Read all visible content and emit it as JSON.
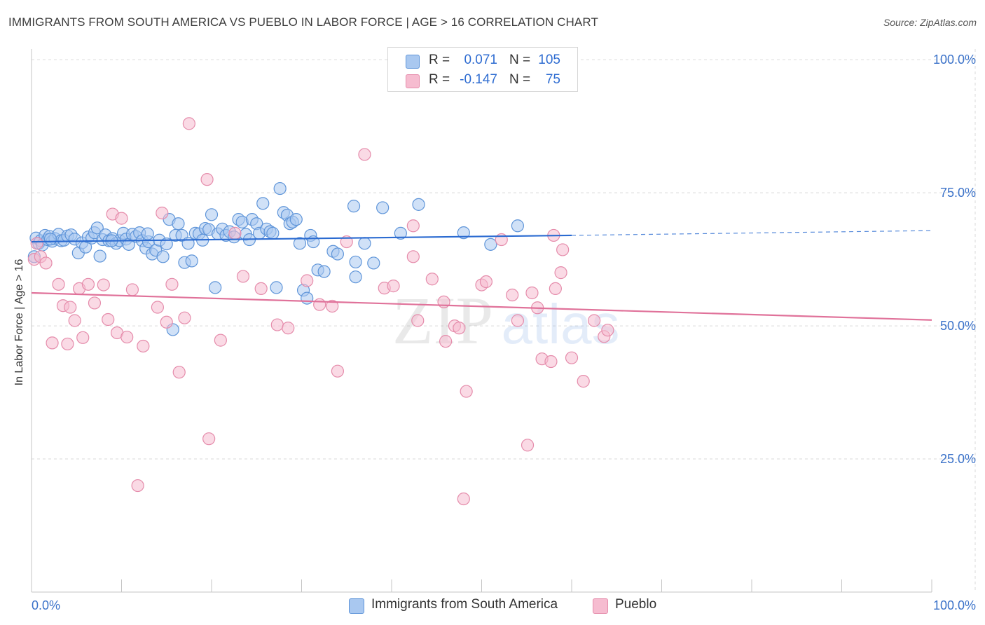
{
  "title": "IMMIGRANTS FROM SOUTH AMERICA VS PUEBLO IN LABOR FORCE | AGE > 16 CORRELATION CHART",
  "source": "Source: ZipAtlas.com",
  "colors": {
    "blue_fill": "#a9c8f0",
    "blue_stroke": "#5f95d9",
    "blue_line": "#2b6bd1",
    "pink_fill": "#f6bcd0",
    "pink_stroke": "#e58cab",
    "pink_line": "#e0729a",
    "grid": "#d9d9d9",
    "axis_text": "#3b72c9"
  },
  "legend": {
    "rows": [
      {
        "r_label": "R =",
        "r_value": "0.071",
        "n_label": "N =",
        "n_value": "105"
      },
      {
        "r_label": "R =",
        "r_value": "-0.147",
        "n_label": "N =",
        "n_value": "75"
      }
    ]
  },
  "bottom_legend": {
    "blue": "Immigrants from South America",
    "pink": "Pueblo"
  },
  "watermark": {
    "zip": "ZIP",
    "atlas": "atlas"
  },
  "chart_data": {
    "type": "scatter",
    "title": "IMMIGRANTS FROM SOUTH AMERICA VS PUEBLO IN LABOR FORCE | AGE > 16 CORRELATION CHART",
    "xlabel": "",
    "ylabel": "In Labor Force | Age > 16",
    "xlim": [
      0,
      100
    ],
    "ylim": [
      0,
      102
    ],
    "x_tick_labels": [
      "0.0%",
      "100.0%"
    ],
    "y_ticks": [
      25,
      50,
      75,
      100
    ],
    "y_tick_labels": [
      "25.0%",
      "50.0%",
      "75.0%",
      "100.0%"
    ],
    "grid": true,
    "series": [
      {
        "name": "Immigrants from South America",
        "color": "blue",
        "trend": {
          "x0": 0,
          "y0": 65.8,
          "x1": 60,
          "y1": 67.0,
          "dash_x1": 100,
          "dash_y1": 67.9
        },
        "points": [
          [
            0.3,
            63.0
          ],
          [
            0.5,
            66.5
          ],
          [
            0.8,
            65.5
          ],
          [
            1.0,
            66.0
          ],
          [
            1.2,
            65.2
          ],
          [
            1.5,
            67.0
          ],
          [
            1.8,
            66.2
          ],
          [
            2.0,
            66.8
          ],
          [
            2.3,
            65.9
          ],
          [
            2.6,
            66.4
          ],
          [
            3.0,
            67.2
          ],
          [
            3.3,
            66.0
          ],
          [
            3.6,
            66.1
          ],
          [
            4.0,
            66.9
          ],
          [
            4.4,
            67.1
          ],
          [
            4.8,
            66.3
          ],
          [
            5.2,
            63.7
          ],
          [
            5.6,
            65.6
          ],
          [
            6.0,
            64.8
          ],
          [
            6.3,
            66.7
          ],
          [
            6.7,
            66.5
          ],
          [
            7.0,
            67.5
          ],
          [
            7.3,
            68.4
          ],
          [
            7.6,
            63.1
          ],
          [
            7.9,
            66.2
          ],
          [
            8.2,
            67.1
          ],
          [
            8.6,
            66.0
          ],
          [
            9.0,
            66.4
          ],
          [
            9.4,
            65.5
          ],
          [
            9.8,
            66.0
          ],
          [
            10.2,
            67.4
          ],
          [
            10.5,
            66.3
          ],
          [
            10.8,
            65.3
          ],
          [
            11.2,
            67.2
          ],
          [
            11.6,
            66.8
          ],
          [
            12.0,
            67.5
          ],
          [
            12.3,
            66.0
          ],
          [
            12.7,
            64.6
          ],
          [
            13.0,
            65.8
          ],
          [
            13.4,
            63.5
          ],
          [
            13.8,
            64.2
          ],
          [
            14.2,
            66.1
          ],
          [
            14.6,
            63.0
          ],
          [
            15.0,
            65.4
          ],
          [
            15.3,
            70.0
          ],
          [
            15.7,
            49.3
          ],
          [
            16.0,
            67.0
          ],
          [
            16.3,
            69.2
          ],
          [
            16.7,
            67.0
          ],
          [
            17.0,
            61.9
          ],
          [
            17.4,
            65.5
          ],
          [
            17.8,
            62.2
          ],
          [
            18.2,
            67.4
          ],
          [
            18.6,
            67.3
          ],
          [
            19.0,
            66.1
          ],
          [
            19.3,
            68.3
          ],
          [
            19.7,
            68.1
          ],
          [
            20.0,
            70.9
          ],
          [
            20.4,
            57.2
          ],
          [
            20.7,
            67.3
          ],
          [
            21.2,
            68.2
          ],
          [
            21.6,
            67.0
          ],
          [
            22.0,
            67.7
          ],
          [
            22.5,
            66.7
          ],
          [
            23.0,
            70.0
          ],
          [
            23.4,
            69.5
          ],
          [
            23.8,
            67.2
          ],
          [
            24.2,
            66.2
          ],
          [
            24.5,
            70.0
          ],
          [
            25.0,
            69.2
          ],
          [
            25.3,
            67.4
          ],
          [
            25.7,
            73.0
          ],
          [
            26.1,
            68.2
          ],
          [
            26.5,
            67.7
          ],
          [
            26.8,
            67.4
          ],
          [
            27.2,
            57.2
          ],
          [
            27.6,
            75.8
          ],
          [
            28.0,
            71.3
          ],
          [
            28.4,
            70.8
          ],
          [
            28.7,
            69.2
          ],
          [
            29.0,
            69.5
          ],
          [
            29.4,
            70.0
          ],
          [
            29.8,
            65.5
          ],
          [
            30.2,
            56.7
          ],
          [
            30.6,
            55.2
          ],
          [
            31.0,
            67.0
          ],
          [
            31.3,
            65.8
          ],
          [
            31.8,
            60.5
          ],
          [
            32.5,
            60.2
          ],
          [
            33.5,
            64.0
          ],
          [
            34.0,
            63.5
          ],
          [
            35.8,
            72.5
          ],
          [
            36.0,
            59.2
          ],
          [
            36.0,
            62.0
          ],
          [
            37.0,
            65.5
          ],
          [
            38.0,
            61.8
          ],
          [
            39.0,
            72.2
          ],
          [
            41.0,
            67.4
          ],
          [
            43.0,
            72.8
          ],
          [
            48.0,
            67.5
          ],
          [
            51.0,
            65.3
          ],
          [
            54.0,
            68.8
          ],
          [
            2.1,
            66.3
          ],
          [
            8.9,
            66.0
          ],
          [
            12.9,
            67.3
          ]
        ]
      },
      {
        "name": "Pueblo",
        "color": "pink",
        "trend": {
          "x0": 0,
          "y0": 56.2,
          "x1": 100,
          "y1": 51.1
        },
        "points": [
          [
            0.3,
            62.5
          ],
          [
            0.6,
            65.5
          ],
          [
            1.0,
            63.0
          ],
          [
            1.6,
            61.8
          ],
          [
            2.3,
            46.8
          ],
          [
            3.0,
            57.8
          ],
          [
            3.5,
            53.8
          ],
          [
            4.0,
            46.6
          ],
          [
            4.3,
            53.5
          ],
          [
            4.8,
            51.0
          ],
          [
            5.3,
            57.0
          ],
          [
            5.7,
            47.8
          ],
          [
            6.3,
            57.8
          ],
          [
            7.0,
            54.3
          ],
          [
            8.0,
            57.7
          ],
          [
            8.5,
            51.2
          ],
          [
            9.0,
            71.0
          ],
          [
            9.5,
            48.7
          ],
          [
            10.0,
            70.2
          ],
          [
            10.6,
            47.9
          ],
          [
            11.2,
            56.8
          ],
          [
            11.8,
            20.0
          ],
          [
            12.4,
            46.2
          ],
          [
            14.0,
            53.5
          ],
          [
            14.5,
            71.2
          ],
          [
            15.0,
            50.7
          ],
          [
            15.6,
            57.8
          ],
          [
            16.4,
            41.3
          ],
          [
            17.0,
            51.5
          ],
          [
            17.5,
            88.0
          ],
          [
            19.5,
            77.5
          ],
          [
            19.7,
            28.8
          ],
          [
            21.0,
            47.3
          ],
          [
            22.6,
            67.4
          ],
          [
            23.5,
            59.3
          ],
          [
            25.5,
            57.0
          ],
          [
            27.3,
            50.2
          ],
          [
            28.5,
            49.6
          ],
          [
            30.6,
            58.5
          ],
          [
            32.0,
            54.0
          ],
          [
            34.0,
            41.5
          ],
          [
            35.0,
            65.8
          ],
          [
            37.0,
            82.2
          ],
          [
            39.2,
            57.1
          ],
          [
            40.2,
            57.5
          ],
          [
            42.4,
            63.0
          ],
          [
            42.9,
            51.0
          ],
          [
            44.5,
            58.8
          ],
          [
            45.8,
            54.5
          ],
          [
            46.0,
            47.1
          ],
          [
            47.0,
            50.0
          ],
          [
            47.5,
            49.6
          ],
          [
            48.0,
            17.5
          ],
          [
            48.3,
            37.7
          ],
          [
            50.0,
            57.7
          ],
          [
            50.5,
            58.3
          ],
          [
            52.2,
            66.2
          ],
          [
            53.4,
            55.8
          ],
          [
            54.0,
            51.0
          ],
          [
            55.1,
            27.6
          ],
          [
            55.6,
            56.2
          ],
          [
            56.2,
            53.4
          ],
          [
            56.7,
            43.8
          ],
          [
            57.7,
            43.3
          ],
          [
            58.0,
            67.0
          ],
          [
            58.2,
            57.0
          ],
          [
            58.8,
            60.0
          ],
          [
            59.0,
            64.3
          ],
          [
            60.0,
            44.0
          ],
          [
            61.3,
            39.6
          ],
          [
            62.5,
            51.0
          ],
          [
            63.6,
            48.0
          ],
          [
            64.0,
            49.2
          ],
          [
            42.4,
            68.8
          ],
          [
            33.4,
            53.7
          ]
        ]
      }
    ]
  }
}
